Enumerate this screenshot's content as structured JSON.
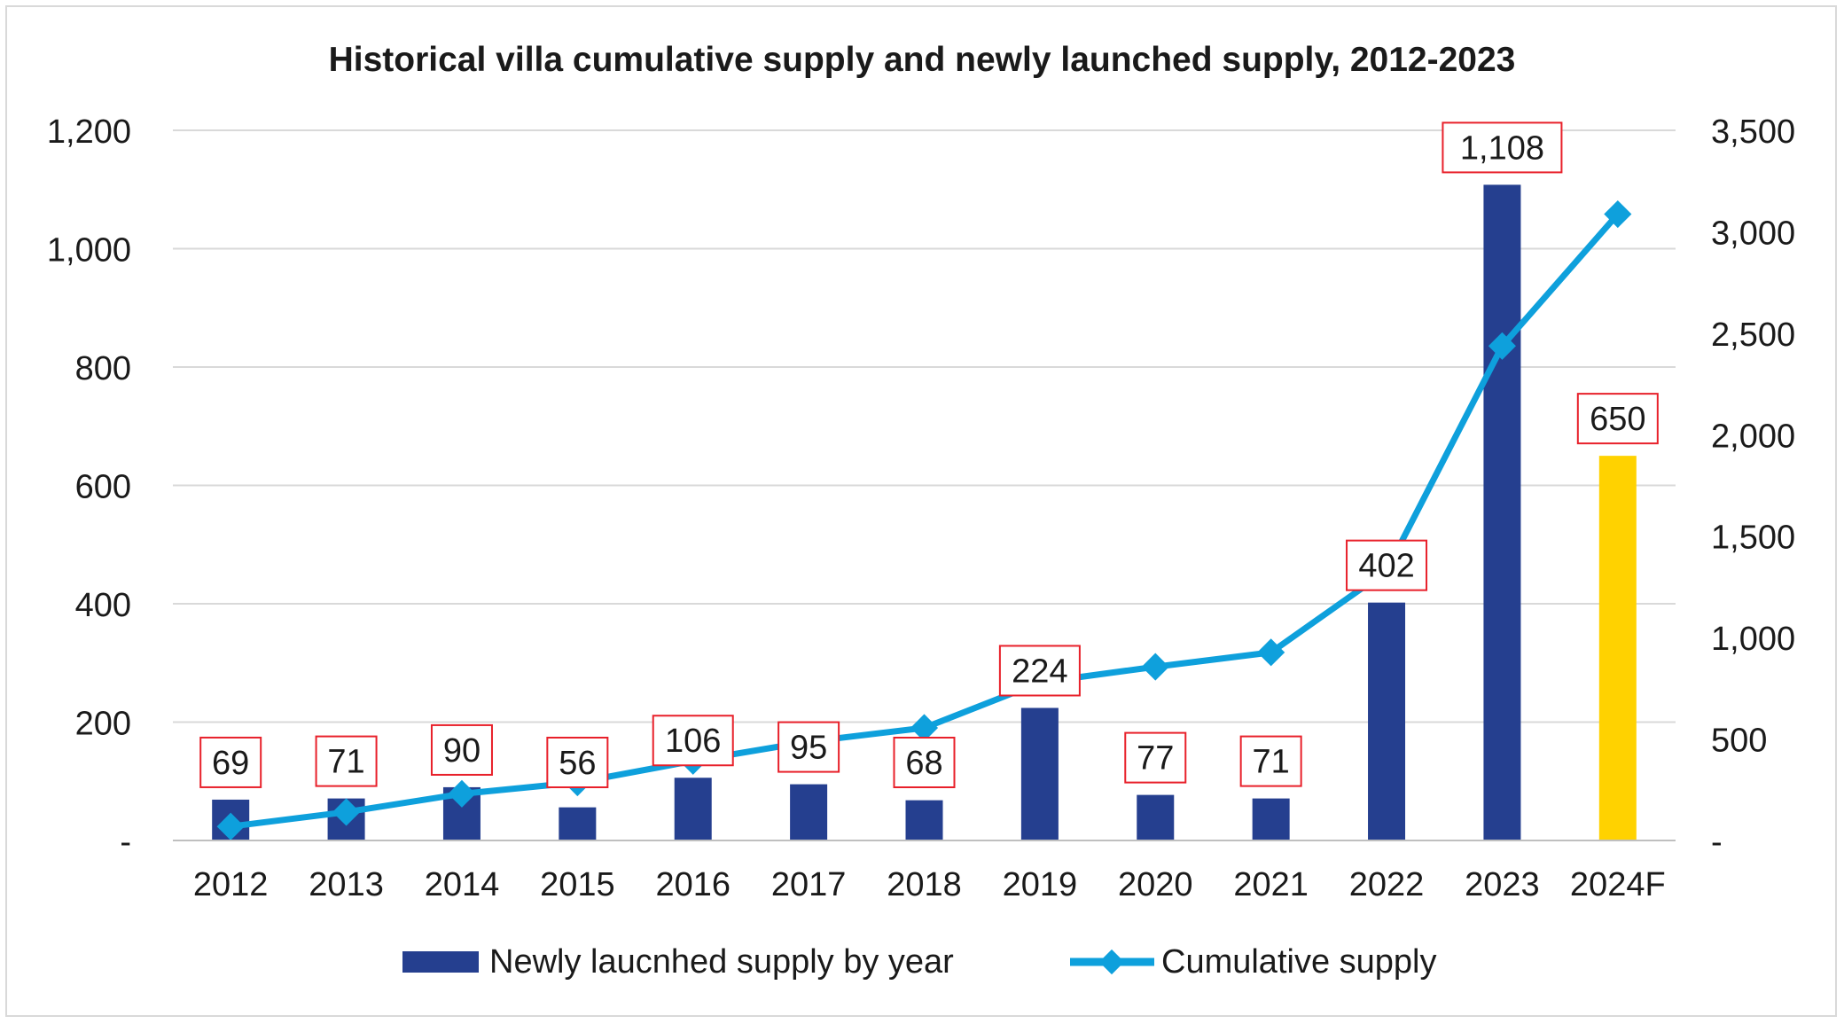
{
  "chart_data": {
    "type": "bar",
    "title": "Historical villa cumulative supply and newly launched supply, 2012-2023",
    "categories": [
      "2012",
      "2013",
      "2014",
      "2015",
      "2016",
      "2017",
      "2018",
      "2019",
      "2020",
      "2021",
      "2022",
      "2023",
      "2024F"
    ],
    "series": [
      {
        "name": "Newly laucnhed supply by year",
        "type": "bar",
        "axis": "left",
        "values": [
          69,
          71,
          90,
          56,
          106,
          95,
          68,
          224,
          77,
          71,
          402,
          1108,
          650
        ],
        "labels": [
          "69",
          "71",
          "90",
          "56",
          "106",
          "95",
          "68",
          "224",
          "77",
          "71",
          "402",
          "1,108",
          "650"
        ],
        "colors": [
          "#253f8f",
          "#253f8f",
          "#253f8f",
          "#253f8f",
          "#253f8f",
          "#253f8f",
          "#253f8f",
          "#253f8f",
          "#253f8f",
          "#253f8f",
          "#253f8f",
          "#253f8f",
          "#ffd200"
        ]
      },
      {
        "name": "Cumulative supply",
        "type": "line",
        "axis": "right",
        "color": "#0ea0dc",
        "x": [
          "2012",
          "2013",
          "2014",
          "2015",
          "2016",
          "2017",
          "2018",
          "2019",
          "2020",
          "2021",
          "2022",
          "2023",
          "2024F"
        ],
        "values": [
          69,
          140,
          230,
          286,
          392,
          487,
          555,
          779,
          856,
          927,
          1329,
          2437,
          3087
        ]
      }
    ],
    "y_left": {
      "min": 0,
      "max": 1200,
      "ticks": [
        0,
        200,
        400,
        600,
        800,
        1000,
        1200
      ],
      "tick_labels": [
        "-",
        "200",
        "400",
        "600",
        "800",
        "1,000",
        "1,200"
      ]
    },
    "y_right": {
      "min": 0,
      "max": 3500,
      "ticks": [
        0,
        500,
        1000,
        1500,
        2000,
        2500,
        3000,
        3500
      ],
      "tick_labels": [
        "-",
        "500",
        "1,000",
        "1,500",
        "2,000",
        "2,500",
        "3,000",
        "3,500"
      ]
    },
    "legend_position": "bottom",
    "label_box_color": "#e8202a",
    "grid": true
  }
}
